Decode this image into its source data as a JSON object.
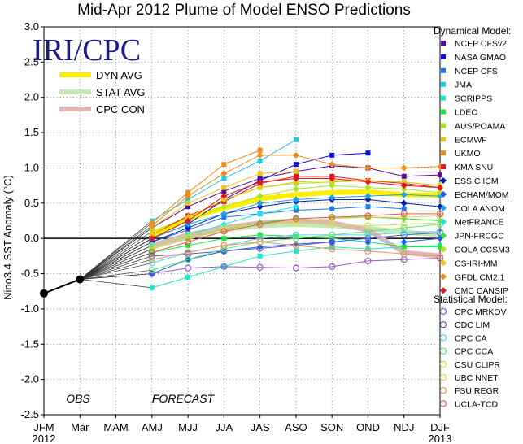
{
  "chart_data": {
    "type": "line",
    "title": "Mid-Apr 2012 Plume of Model ENSO Predictions",
    "watermark": "IRI/CPC",
    "ylabel": "Nino3.4 SST Anomaly (°C)",
    "ylim": [
      -2.5,
      3.0
    ],
    "yticks": [
      "3.0",
      "2.5",
      "2.0",
      "1.5",
      "1.0",
      "0.5",
      "0.0",
      "-0.5",
      "-1.0",
      "-1.5",
      "-2.0",
      "-2.5"
    ],
    "categories": [
      "JFM",
      "Mar",
      "MAM",
      "AMJ",
      "MJJ",
      "JJA",
      "JAS",
      "ASO",
      "SON",
      "OND",
      "NDJ",
      "DJF"
    ],
    "year_start": "2012",
    "year_end": "2013",
    "obs_label": "OBS",
    "forecast_label": "FORECAST",
    "observed": [
      -0.78,
      -0.58
    ],
    "averages": [
      {
        "name": "DYN AVG",
        "color": "#ffee00",
        "values": [
          0.05,
          0.28,
          0.43,
          0.56,
          0.62,
          0.65,
          0.66,
          0.62,
          0.61
        ]
      },
      {
        "name": "STAT AVG",
        "color": "#c6e8b8",
        "values": [
          -0.12,
          0.02,
          0.12,
          0.18,
          0.2,
          0.18,
          0.14,
          0.09,
          0.05
        ]
      },
      {
        "name": "CPC CON",
        "color": "#dcb7b4",
        "values": [
          -0.1,
          0.05,
          0.15,
          0.22,
          0.25,
          0.22,
          0.12,
          -0.2,
          -0.25
        ]
      }
    ],
    "dynamical_header": "Dynamical Model:",
    "statistical_header": "Statistical Model:",
    "dynamical": [
      {
        "name": "NCEP CFSv2",
        "color": "#5a0a96",
        "marker": "square",
        "values": [
          0.15,
          0.45,
          0.67,
          0.85,
          0.95,
          1.03,
          1.0,
          0.88,
          0.9
        ]
      },
      {
        "name": "NASA GMAO",
        "color": "#0a0ae6",
        "marker": "square",
        "values": [
          0.0,
          0.2,
          0.55,
          0.82,
          1.05,
          1.18,
          1.21
        ]
      },
      {
        "name": "NCEP CFS",
        "color": "#1e78e6",
        "marker": "square",
        "values": [
          -0.05,
          0.12,
          0.3,
          0.35,
          0.4,
          0.42,
          0.45,
          0.42
        ]
      },
      {
        "name": "JMA",
        "color": "#1ec8e6",
        "marker": "square",
        "values": [
          0.25,
          0.55,
          0.85,
          1.1,
          1.4
        ]
      },
      {
        "name": "SCRIPPS",
        "color": "#1ee6c8",
        "marker": "square",
        "values": [
          -0.7,
          -0.55,
          -0.4,
          -0.25,
          -0.18,
          -0.12,
          -0.15,
          -0.12,
          -0.1
        ]
      },
      {
        "name": "LDEO",
        "color": "#1ee632",
        "marker": "square",
        "values": [
          -0.2,
          -0.1,
          0.0,
          0.05,
          0.03,
          0.0,
          -0.05,
          -0.12,
          -0.12
        ]
      },
      {
        "name": "AUS/POAMA",
        "color": "#a0e61e",
        "marker": "square",
        "values": [
          0.1,
          0.3,
          0.55,
          0.72,
          0.78,
          0.8,
          0.82,
          0.8,
          0.75
        ]
      },
      {
        "name": "ECMWF",
        "color": "#e6c81e",
        "marker": "square",
        "values": [
          0.15,
          0.5,
          0.72,
          0.92,
          0.95
        ]
      },
      {
        "name": "UKMO",
        "color": "#f08c1e",
        "marker": "square",
        "values": [
          0.22,
          0.65,
          1.05,
          1.25
        ]
      },
      {
        "name": "KMA SNU",
        "color": "#e6141e",
        "marker": "square",
        "values": [
          0.05,
          0.32,
          0.52,
          0.78,
          0.88,
          0.88,
          0.82,
          0.78,
          0.72
        ]
      },
      {
        "name": "ESSIC ICM",
        "color": "#0a1eb4",
        "marker": "diamond",
        "values": [
          -0.05,
          0.15,
          0.35,
          0.45,
          0.52,
          0.55,
          0.55,
          0.5,
          0.45
        ]
      },
      {
        "name": "ECHAM/MOM",
        "color": "#1e5af0",
        "marker": "diamond",
        "values": [
          -0.5,
          -0.3,
          -0.18,
          -0.12,
          -0.08,
          -0.05,
          -0.05,
          -0.05,
          0.0
        ]
      },
      {
        "name": "COLA ANOM",
        "color": "#1ea0e6",
        "marker": "diamond",
        "values": [
          0.0,
          0.2,
          0.35,
          0.5,
          0.55,
          0.58,
          0.6,
          0.62,
          0.6
        ]
      },
      {
        "name": "MetFRANCE",
        "color": "#1ee6e6",
        "marker": "diamond",
        "values": [
          -0.1,
          0.05,
          0.2,
          0.35,
          0.45
        ]
      },
      {
        "name": "JPN-FRCGC",
        "color": "#32e632",
        "marker": "diamond",
        "values": [
          -0.15,
          0.0,
          0.12,
          0.22,
          0.28,
          0.3,
          0.3,
          0.28,
          0.25
        ]
      },
      {
        "name": "COLA CCSM3",
        "color": "#a8e61e",
        "marker": "diamond",
        "values": [
          0.0,
          0.25,
          0.45,
          0.6,
          0.7,
          0.75,
          0.72,
          0.7,
          0.65
        ]
      },
      {
        "name": "CS-IRI-MM",
        "color": "#e6c81e",
        "marker": "diamond",
        "values": [
          0.05,
          0.3,
          0.55,
          0.72,
          0.8,
          0.82,
          0.82,
          0.8,
          0.75
        ]
      },
      {
        "name": "GFDL CM2.1",
        "color": "#f08c1e",
        "marker": "diamond",
        "values": [
          0.18,
          0.6,
          0.92,
          1.18,
          1.18,
          1.05,
          1.0,
          1.0,
          1.02
        ]
      },
      {
        "name": "CMC CANSIP",
        "color": "#e6141e",
        "marker": "diamond",
        "values": [
          0.0,
          0.25,
          0.6,
          0.8,
          0.85,
          0.85,
          0.8,
          0.75,
          0.72
        ]
      }
    ],
    "statistical": [
      {
        "name": "CPC MRKOV",
        "color": "#9a5ac8",
        "marker": "circle",
        "values": [
          -0.5,
          -0.42,
          -0.4,
          -0.41,
          -0.42,
          -0.4,
          -0.32,
          -0.3,
          -0.28
        ]
      },
      {
        "name": "CDC LIM",
        "color": "#5a5ac8",
        "marker": "circle",
        "values": [
          -0.25,
          -0.22,
          -0.18,
          -0.14,
          -0.1,
          -0.05,
          0.0,
          0.05,
          0.08
        ]
      },
      {
        "name": "CPC CA",
        "color": "#5ad2e6",
        "marker": "circle",
        "values": [
          -0.35,
          -0.2,
          -0.1,
          0.0,
          0.05,
          0.05,
          0.05,
          0.08,
          0.1
        ]
      },
      {
        "name": "CPC CCA",
        "color": "#5ae678",
        "marker": "circle",
        "values": [
          -0.45,
          -0.3,
          -0.15,
          -0.05,
          0.0,
          0.05,
          0.1,
          0.15,
          0.2
        ]
      },
      {
        "name": "CSU CLIPR",
        "color": "#c8e65a",
        "marker": "circle",
        "values": [
          -0.1,
          0.05,
          0.15,
          0.2,
          0.22,
          0.2,
          0.18,
          0.2,
          0.22
        ]
      },
      {
        "name": "UBC NNET",
        "color": "#e6d25a",
        "marker": "circle",
        "values": [
          -0.15,
          0.0,
          0.12,
          0.2,
          0.25,
          0.28,
          0.3,
          0.3,
          0.32
        ]
      },
      {
        "name": "FSU REGR",
        "color": "#e6965a",
        "marker": "circle",
        "values": [
          -0.3,
          -0.2,
          -0.1,
          -0.05,
          -0.1,
          -0.15,
          -0.18,
          -0.22,
          -0.25
        ]
      },
      {
        "name": "UCLA-TCD",
        "color": "#e65a5a",
        "marker": "circle",
        "values": [
          -0.2,
          -0.05,
          0.1,
          0.2,
          0.28,
          0.3,
          0.32,
          0.35,
          0.35
        ]
      }
    ]
  }
}
